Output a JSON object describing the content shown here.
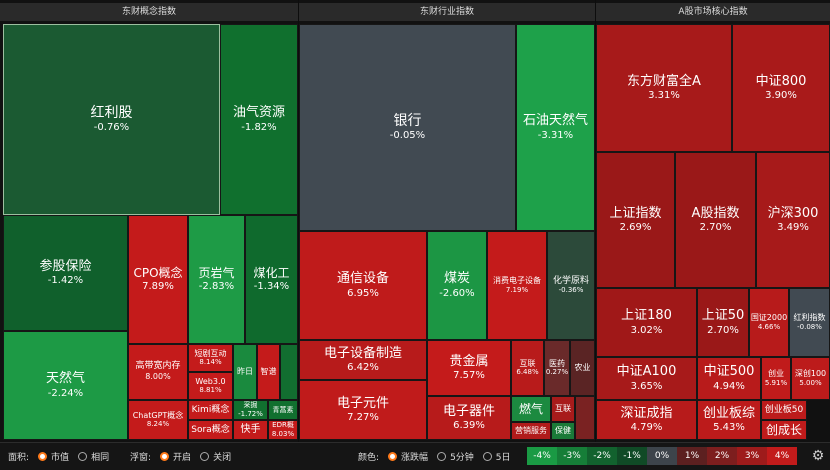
{
  "panels": [
    {
      "title": "东财概念指数",
      "tiles": [
        {
          "name": "红利股",
          "value": "-0.76%",
          "color": "#1b5a32"
        },
        {
          "name": "油气资源",
          "value": "-1.82%",
          "color": "#10702e"
        },
        {
          "name": "参股保险",
          "value": "-1.42%",
          "color": "#10602c"
        },
        {
          "name": "天然气",
          "value": "-2.24%",
          "color": "#1d9a45"
        },
        {
          "name": "CPO概念",
          "value": "7.89%",
          "color": "#c41b1b"
        },
        {
          "name": "页岩气",
          "value": "-2.83%",
          "color": "#1e9b46"
        },
        {
          "name": "煤化工",
          "value": "-1.34%",
          "color": "#0f6a2d"
        },
        {
          "name": "高带宽内存",
          "value": "8.00%",
          "color": "#c41b1b"
        },
        {
          "name": "短剧互动",
          "value": "8.14%",
          "color": "#c41b1b"
        },
        {
          "name": "Web3.0",
          "value": "8.81%",
          "color": "#c41b1b"
        },
        {
          "name": "昨日",
          "value": "",
          "color": "#1a8a3e"
        },
        {
          "name": "智谱",
          "value": "",
          "color": "#c41b1b"
        },
        {
          "name": "",
          "value": "",
          "color": "#126e30"
        },
        {
          "name": "ChatGPT概念",
          "value": "8.24%",
          "color": "#c41b1b"
        },
        {
          "name": "Kimi概念",
          "value": "",
          "color": "#c41b1b"
        },
        {
          "name": "Sora概念",
          "value": "",
          "color": "#c41b1b"
        },
        {
          "name": "快手",
          "value": "",
          "color": "#c41b1b"
        },
        {
          "name": "采掘",
          "value": "-1.72%",
          "color": "#11702f"
        },
        {
          "name": "青蒿素",
          "value": "",
          "color": "#11702f"
        },
        {
          "name": "EDR概",
          "value": "8.03%",
          "color": "#c41b1b"
        }
      ]
    },
    {
      "title": "东财行业指数",
      "tiles": [
        {
          "name": "银行",
          "value": "-0.05%",
          "color": "#414a52"
        },
        {
          "name": "石油天然气",
          "value": "-3.31%",
          "color": "#1ea14a"
        },
        {
          "name": "通信设备",
          "value": "6.95%",
          "color": "#bf1b1b"
        },
        {
          "name": "煤炭",
          "value": "-2.60%",
          "color": "#1c9644"
        },
        {
          "name": "消费电子设备",
          "value": "7.19%",
          "color": "#c41b1b"
        },
        {
          "name": "化学原料",
          "value": "-0.36%",
          "color": "#2c4a3a"
        },
        {
          "name": "电子设备制造",
          "value": "6.42%",
          "color": "#b71b1b"
        },
        {
          "name": "贵金属",
          "value": "7.57%",
          "color": "#c41b1b"
        },
        {
          "name": "互联",
          "value": "6.48%",
          "color": "#b81b1b"
        },
        {
          "name": "医药",
          "value": "0.27%",
          "color": "#6a2a2a"
        },
        {
          "name": "农业",
          "value": "",
          "color": "#5a2424"
        },
        {
          "name": "电子元件",
          "value": "7.27%",
          "color": "#c01b1b"
        },
        {
          "name": "电子器件",
          "value": "6.39%",
          "color": "#b71b1b"
        },
        {
          "name": "燃气",
          "value": "",
          "color": "#1c8a40"
        },
        {
          "name": "互联",
          "value": "",
          "color": "#a81b1b"
        },
        {
          "name": "营销服务",
          "value": "",
          "color": "#b01b1b"
        },
        {
          "name": "保健",
          "value": "",
          "color": "#1a7a38"
        },
        {
          "name": "",
          "value": "",
          "color": "#7a2222"
        }
      ]
    },
    {
      "title": "A股市场核心指数",
      "tiles": [
        {
          "name": "东方财富全A",
          "value": "3.31%",
          "color": "#a71a1a"
        },
        {
          "name": "中证800",
          "value": "3.90%",
          "color": "#a91a1a"
        },
        {
          "name": "上证指数",
          "value": "2.69%",
          "color": "#9a1818"
        },
        {
          "name": "A股指数",
          "value": "2.70%",
          "color": "#9a1818"
        },
        {
          "name": "沪深300",
          "value": "3.49%",
          "color": "#a71a1a"
        },
        {
          "name": "上证180",
          "value": "3.02%",
          "color": "#a01818"
        },
        {
          "name": "上证50",
          "value": "2.70%",
          "color": "#9a1818"
        },
        {
          "name": "国证2000",
          "value": "4.66%",
          "color": "#b71b1b"
        },
        {
          "name": "红利指数",
          "value": "-0.08%",
          "color": "#414a52"
        },
        {
          "name": "中证A100",
          "value": "3.65%",
          "color": "#a71a1a"
        },
        {
          "name": "中证500",
          "value": "4.94%",
          "color": "#b81b1b"
        },
        {
          "name": "创业",
          "value": "5.91%",
          "color": "#c01b1b"
        },
        {
          "name": "深创100",
          "value": "5.00%",
          "color": "#bc1b1b"
        },
        {
          "name": "深证成指",
          "value": "4.79%",
          "color": "#b71b1b"
        },
        {
          "name": "创业板综",
          "value": "5.43%",
          "color": "#bc1b1b"
        },
        {
          "name": "创业板50",
          "value": "",
          "color": "#bc1b1b"
        },
        {
          "name": "创成长",
          "value": "",
          "color": "#c01b1b"
        }
      ]
    }
  ],
  "bottom": {
    "area_label": "面积:",
    "area_opts": [
      "市值",
      "相同"
    ],
    "float_label": "浮窗:",
    "float_opts": [
      "开启",
      "关闭"
    ],
    "color_label": "颜色:",
    "color_opts": [
      "涨跌幅",
      "5分钟",
      "5日"
    ],
    "legend": [
      {
        "label": "-4%",
        "color": "#1a9a44"
      },
      {
        "label": "-3%",
        "color": "#167e38"
      },
      {
        "label": "-2%",
        "color": "#12622e"
      },
      {
        "label": "-1%",
        "color": "#104a26"
      },
      {
        "label": "0%",
        "color": "#3d444b"
      },
      {
        "label": "1%",
        "color": "#5c2020"
      },
      {
        "label": "2%",
        "color": "#7d1e1e"
      },
      {
        "label": "3%",
        "color": "#9e1b1b"
      },
      {
        "label": "4%",
        "color": "#c21b1b"
      }
    ],
    "settings_icon": "gear-icon"
  }
}
